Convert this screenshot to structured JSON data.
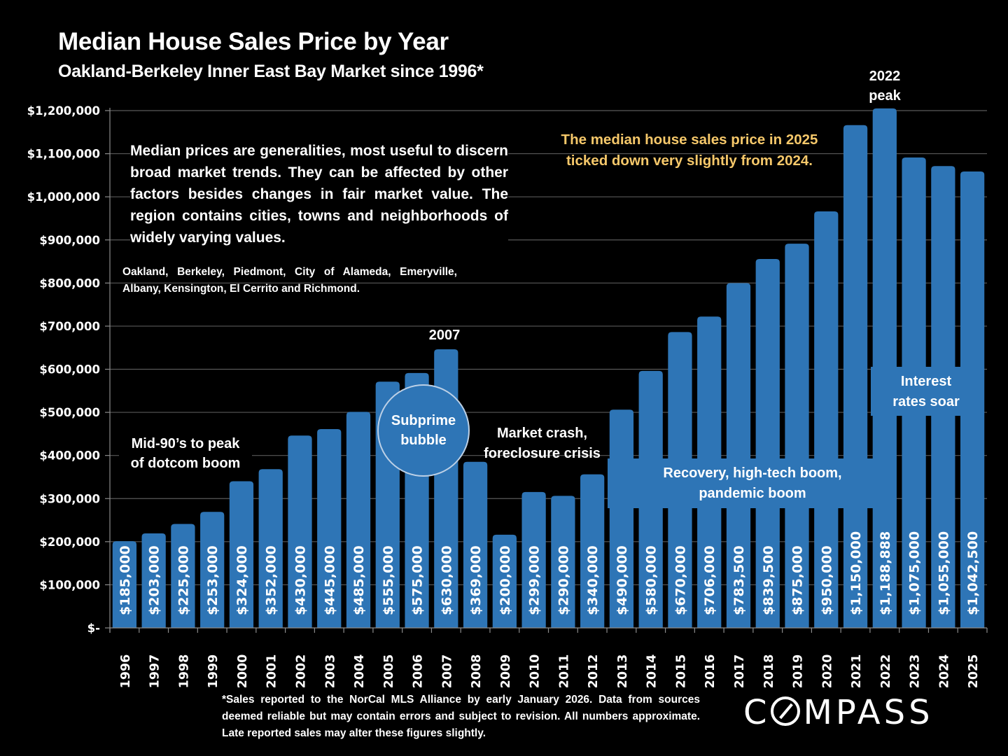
{
  "header": {
    "title": "Median House Sales Price by Year",
    "subtitle": "Oakland-Berkeley Inner East Bay Market since 1996*"
  },
  "colors": {
    "bar": "#2e75b6",
    "background": "#000000",
    "gridline": "#595959",
    "callout_text": "#f6c86a",
    "text": "#ffffff"
  },
  "chart_data": {
    "type": "bar",
    "title": "Median House Sales Price by Year",
    "subtitle": "Oakland-Berkeley Inner East Bay Market since 1996*",
    "xlabel": "",
    "ylabel": "",
    "ylim": [
      0,
      1200000
    ],
    "grid": true,
    "legend": "none",
    "yticks": [
      0,
      100000,
      200000,
      300000,
      400000,
      500000,
      600000,
      700000,
      800000,
      900000,
      1000000,
      1100000,
      1200000
    ],
    "ytick_labels": [
      "$-",
      "$100,000",
      "$200,000",
      "$300,000",
      "$400,000",
      "$500,000",
      "$600,000",
      "$700,000",
      "$800,000",
      "$900,000",
      "$1,000,000",
      "$1,100,000",
      "$1,200,000"
    ],
    "categories": [
      "1996",
      "1997",
      "1998",
      "1999",
      "2000",
      "2001",
      "2002",
      "2003",
      "2004",
      "2005",
      "2006",
      "2007",
      "2008",
      "2009",
      "2010",
      "2011",
      "2012",
      "2013",
      "2014",
      "2015",
      "2016",
      "2017",
      "2018",
      "2019",
      "2020",
      "2021",
      "2022",
      "2023",
      "2024",
      "2025"
    ],
    "values": [
      185000,
      203000,
      225000,
      253000,
      324000,
      352000,
      430000,
      445000,
      485000,
      555000,
      575000,
      630000,
      369000,
      200000,
      299000,
      290000,
      340000,
      490000,
      580000,
      670000,
      706000,
      783500,
      839500,
      875000,
      950000,
      1150000,
      1188888,
      1075000,
      1055000,
      1042500
    ],
    "data_labels": [
      "$185,000",
      "$203,000",
      "$225,000",
      "$253,000",
      "$324,000",
      "$352,000",
      "$430,000",
      "$445,000",
      "$485,000",
      "$555,000",
      "$575,000",
      "$630,000",
      "$369,000",
      "$200,000",
      "$299,000",
      "$290,000",
      "$340,000",
      "$490,000",
      "$580,000",
      "$670,000",
      "$706,000",
      "$783,500",
      "$839,500",
      "$875,000",
      "$950,000",
      "$1,150,000",
      "$1,188,888",
      "$1,075,000",
      "$1,055,000",
      "$1,042,500"
    ],
    "annotations": [
      {
        "text": "2007",
        "anchor": "2007"
      },
      {
        "text": "2022 peak",
        "anchor": "2022"
      },
      {
        "text": "Mid-90's to peak of dotcom boom",
        "range": [
          "1996",
          "2000"
        ]
      },
      {
        "text": "Subprime bubble",
        "range": [
          "2005",
          "2007"
        ]
      },
      {
        "text": "Market crash, foreclosure crisis",
        "range": [
          "2008",
          "2011"
        ]
      },
      {
        "text": "Recovery, high-tech boom, pandemic boom",
        "range": [
          "2013",
          "2021"
        ]
      },
      {
        "text": "Interest rates soar",
        "range": [
          "2023",
          "2025"
        ]
      }
    ]
  },
  "annotations": {
    "label_2007": "2007",
    "label_2022_line1": "2022",
    "label_2022_line2": "peak",
    "dotcom_line1": "Mid-90’s to peak",
    "dotcom_line2": "of dotcom boom",
    "subprime_line1": "Subprime",
    "subprime_line2": "bubble",
    "crash_line1": "Market crash,",
    "crash_line2": "foreclosure crisis",
    "recovery_line1": "Recovery, high-tech boom,",
    "recovery_line2": "pandemic boom",
    "rates_line1": "Interest",
    "rates_line2": "rates soar"
  },
  "notes": {
    "main": "Median prices are generalities, most useful to discern broad market trends. They can be affected by other factors besides changes in fair market value. The region contains cities, towns and neighborhoods of widely varying values.",
    "cities": "Oakland, Berkeley, Piedmont, City of Alameda, Emeryville, Albany, Kensington, El Cerrito and Richmond.",
    "callout": "The median house sales price in 2025 ticked down very slightly from 2024."
  },
  "footer": {
    "footnote": "*Sales reported to the NorCal MLS Alliance by early January 2026. Data from sources deemed reliable but may contain errors and subject to revision. All numbers approximate. Late reported sales may alter these figures slightly.",
    "logo_prefix": "C",
    "logo_suffix": "MPASS"
  }
}
